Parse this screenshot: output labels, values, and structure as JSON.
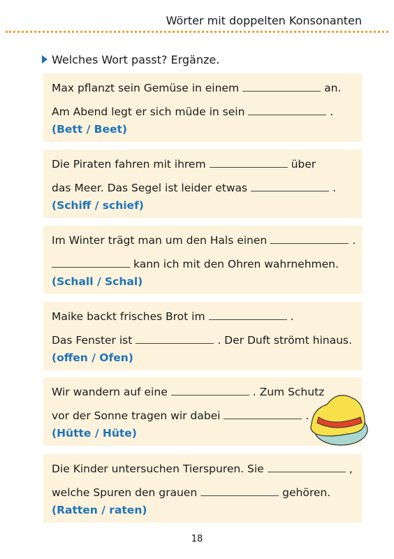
{
  "header": {
    "title": "Wörter mit doppelten Konsonanten"
  },
  "instruction": "Welches Wort passt? Ergänze.",
  "exercises": [
    {
      "lines": [
        {
          "before": "Max pflanzt sein Gemüse in einem",
          "after": "an."
        },
        {
          "before": "Am Abend legt er sich müde in sein",
          "after": "."
        }
      ],
      "options": "(Bett / Beet)"
    },
    {
      "lines": [
        {
          "before": "Die Piraten fahren mit ihrem",
          "after": "über"
        },
        {
          "before": "das Meer. Das Segel ist leider etwas",
          "after": "."
        }
      ],
      "options": "(Schiff / schief)"
    },
    {
      "lines": [
        {
          "before": "Im Winter trägt man um den Hals einen",
          "after": "."
        },
        {
          "after": "kann ich mit den Ohren wahrnehmen."
        }
      ],
      "options": "(Schall / Schal)"
    },
    {
      "lines": [
        {
          "before": "Maike backt frisches Brot im",
          "after": "."
        },
        {
          "before": "Das Fenster ist",
          "after": ". Der Duft strömt hinaus."
        }
      ],
      "options": "(offen / Ofen)"
    },
    {
      "lines": [
        {
          "before": "Wir wandern auf eine",
          "after": ". Zum Schutz"
        },
        {
          "before": "vor der Sonne tragen wir dabei",
          "after": "."
        }
      ],
      "options": "(Hütte / Hüte)"
    },
    {
      "lines": [
        {
          "before": "Die Kinder untersuchen Tierspuren. Sie",
          "after": ","
        },
        {
          "before": "welche Spuren den grauen",
          "after": "gehören."
        }
      ],
      "options": "(Ratten / raten)"
    }
  ],
  "page_number": "18"
}
